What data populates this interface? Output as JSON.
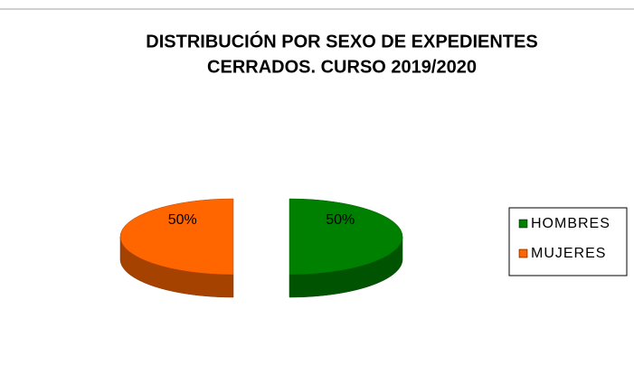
{
  "chart_data": {
    "type": "pie",
    "title": [
      "DISTRIBUCIÓN POR SEXO DE EXPEDIENTES",
      "CERRADOS. CURSO 2019/2020"
    ],
    "categories": [
      "HOMBRES",
      "MUJERES"
    ],
    "values": [
      50,
      50
    ],
    "value_labels": [
      "50%",
      "50%"
    ],
    "colors": [
      "#008000",
      "#ff6600"
    ],
    "legend": "right"
  }
}
